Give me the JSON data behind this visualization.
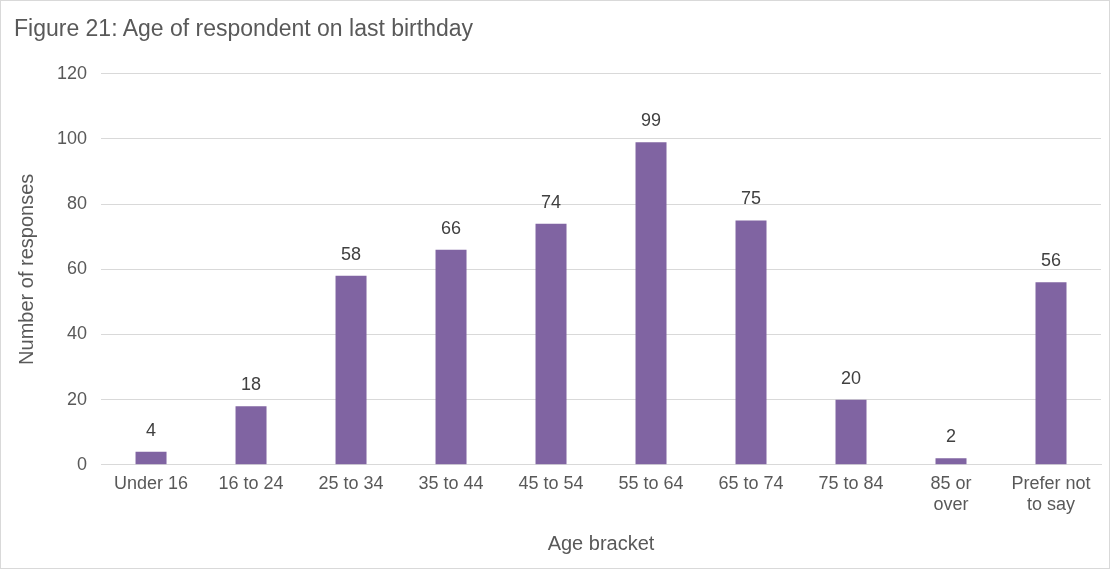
{
  "chart_data": {
    "type": "bar",
    "title": "Figure 21: Age of respondent on last birthday",
    "xlabel": "Age bracket",
    "ylabel": "Number of responses",
    "categories": [
      "Under 16",
      "16 to 24",
      "25 to 34",
      "35 to 44",
      "45 to 54",
      "55 to 64",
      "65 to 74",
      "75 to 84",
      "85 or over",
      "Prefer not to say"
    ],
    "values": [
      4,
      18,
      58,
      66,
      74,
      99,
      75,
      20,
      2,
      56
    ],
    "color": "#8064a2",
    "ylim": [
      0,
      120
    ],
    "yticks": [
      0,
      20,
      40,
      60,
      80,
      100,
      120
    ],
    "grid": "y",
    "data_labels": true,
    "legend": false
  }
}
